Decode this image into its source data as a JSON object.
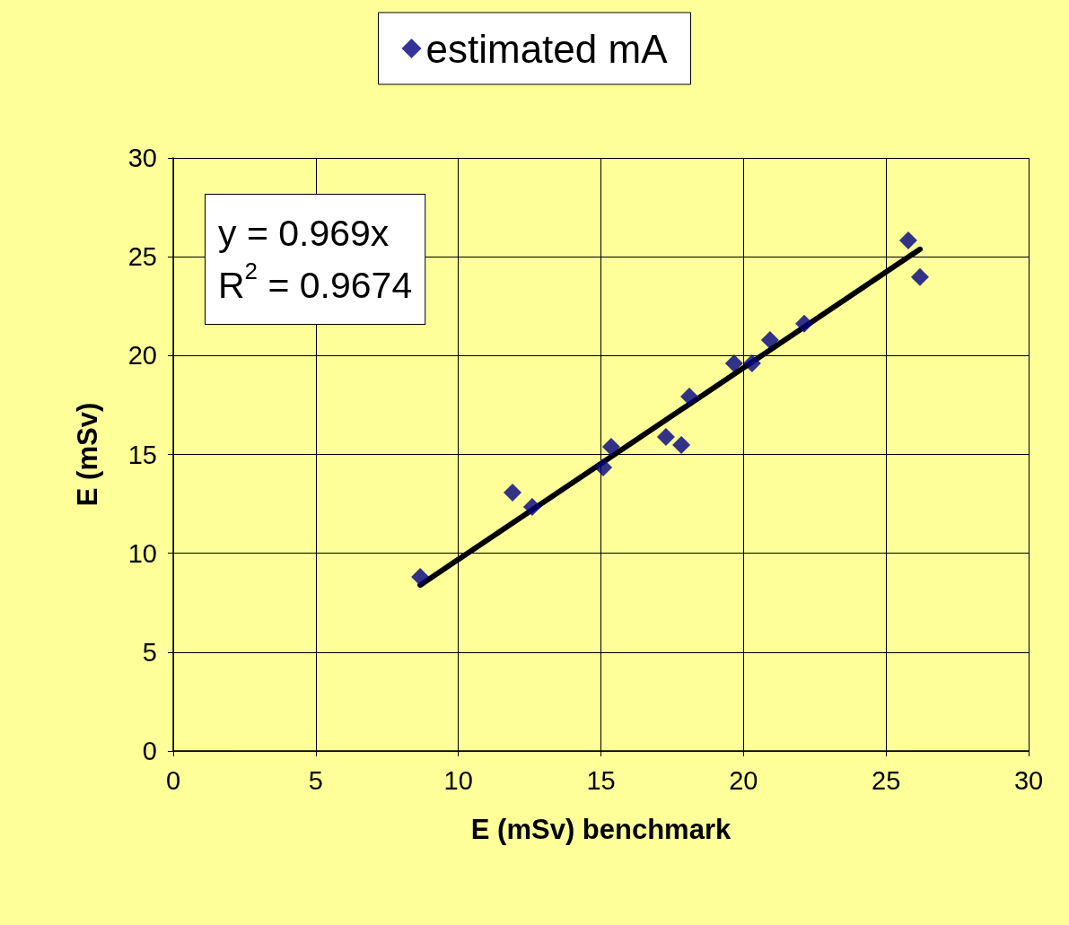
{
  "chart_data": {
    "type": "scatter",
    "xlabel": "E (mSv) benchmark",
    "ylabel": "E (mSv)",
    "series": [
      {
        "name": "estimated mA",
        "color": "#000080",
        "marker": "diamond",
        "x": [
          8.66,
          11.9,
          12.59,
          15.08,
          15.36,
          17.28,
          17.82,
          18.1,
          19.67,
          20.3,
          20.93,
          22.13,
          25.78,
          26.19
        ],
        "values": [
          8.81,
          13.07,
          12.35,
          14.34,
          15.39,
          15.89,
          15.48,
          17.93,
          19.61,
          19.61,
          20.79,
          21.61,
          25.83,
          23.97
        ]
      },
      {
        "type": "line",
        "color": "#000000",
        "marker": "none",
        "x": [
          8.66,
          26.19
        ],
        "values": [
          8.39,
          25.38
        ]
      }
    ],
    "annotations": [
      "y = 0.969x",
      "R$^{2}$ = 0.9674"
    ],
    "xlim": [
      0,
      30
    ],
    "xticks": [
      0,
      5,
      10,
      15,
      20,
      25,
      30
    ],
    "ylim": [
      0,
      30
    ],
    "yticks": [
      0,
      5,
      10,
      15,
      20,
      25,
      30
    ],
    "grid": true,
    "legend": "top"
  }
}
